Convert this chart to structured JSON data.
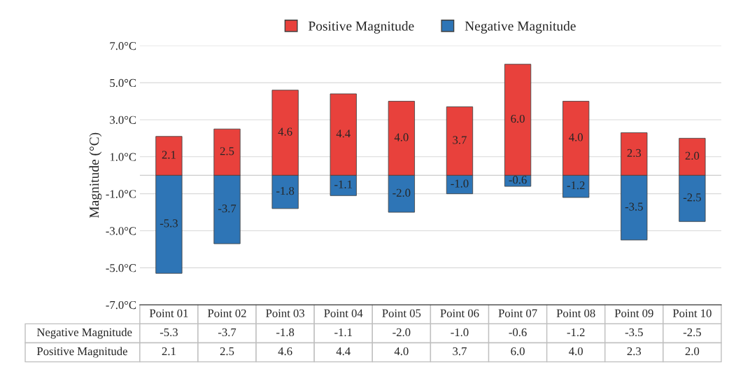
{
  "chart_data": {
    "type": "bar",
    "stacked": true,
    "ylabel": "Magnitude (°C)",
    "categories": [
      "Point 01",
      "Point 02",
      "Point 03",
      "Point 04",
      "Point 05",
      "Point 06",
      "Point 07",
      "Point 08",
      "Point 09",
      "Point 10"
    ],
    "series": [
      {
        "name": "Negative Magnitude",
        "color": "#2e75b6",
        "values": [
          -5.3,
          -3.7,
          -1.8,
          -1.1,
          -2.0,
          -1.0,
          -0.6,
          -1.2,
          -3.5,
          -2.5
        ],
        "value_labels": [
          "-5.3",
          "-3.7",
          "-1.8",
          "-1.1",
          "-2.0",
          "-1.0",
          "-0.6",
          "-1.2",
          "-3.5",
          "-2.5"
        ]
      },
      {
        "name": "Positive Magnitude",
        "color": "#e8413c",
        "values": [
          2.1,
          2.5,
          4.6,
          4.4,
          4.0,
          3.7,
          6.0,
          4.0,
          2.3,
          2.0
        ],
        "value_labels": [
          "2.1",
          "2.5",
          "4.6",
          "4.4",
          "4.0",
          "3.7",
          "6.0",
          "4.0",
          "2.3",
          "2.0"
        ]
      }
    ],
    "ylim": [
      -7,
      7
    ],
    "yticks": [
      {
        "value": -7,
        "label": "-7.0°C"
      },
      {
        "value": -5,
        "label": "-5.0°C"
      },
      {
        "value": -3,
        "label": "-3.0°C"
      },
      {
        "value": -1,
        "label": "-1.0°C"
      },
      {
        "value": 1,
        "label": "1.0°C"
      },
      {
        "value": 3,
        "label": "3.0°C"
      },
      {
        "value": 5,
        "label": "5.0°C"
      },
      {
        "value": 7,
        "label": "7.0°C"
      }
    ],
    "grid": "y",
    "legend": "top"
  }
}
